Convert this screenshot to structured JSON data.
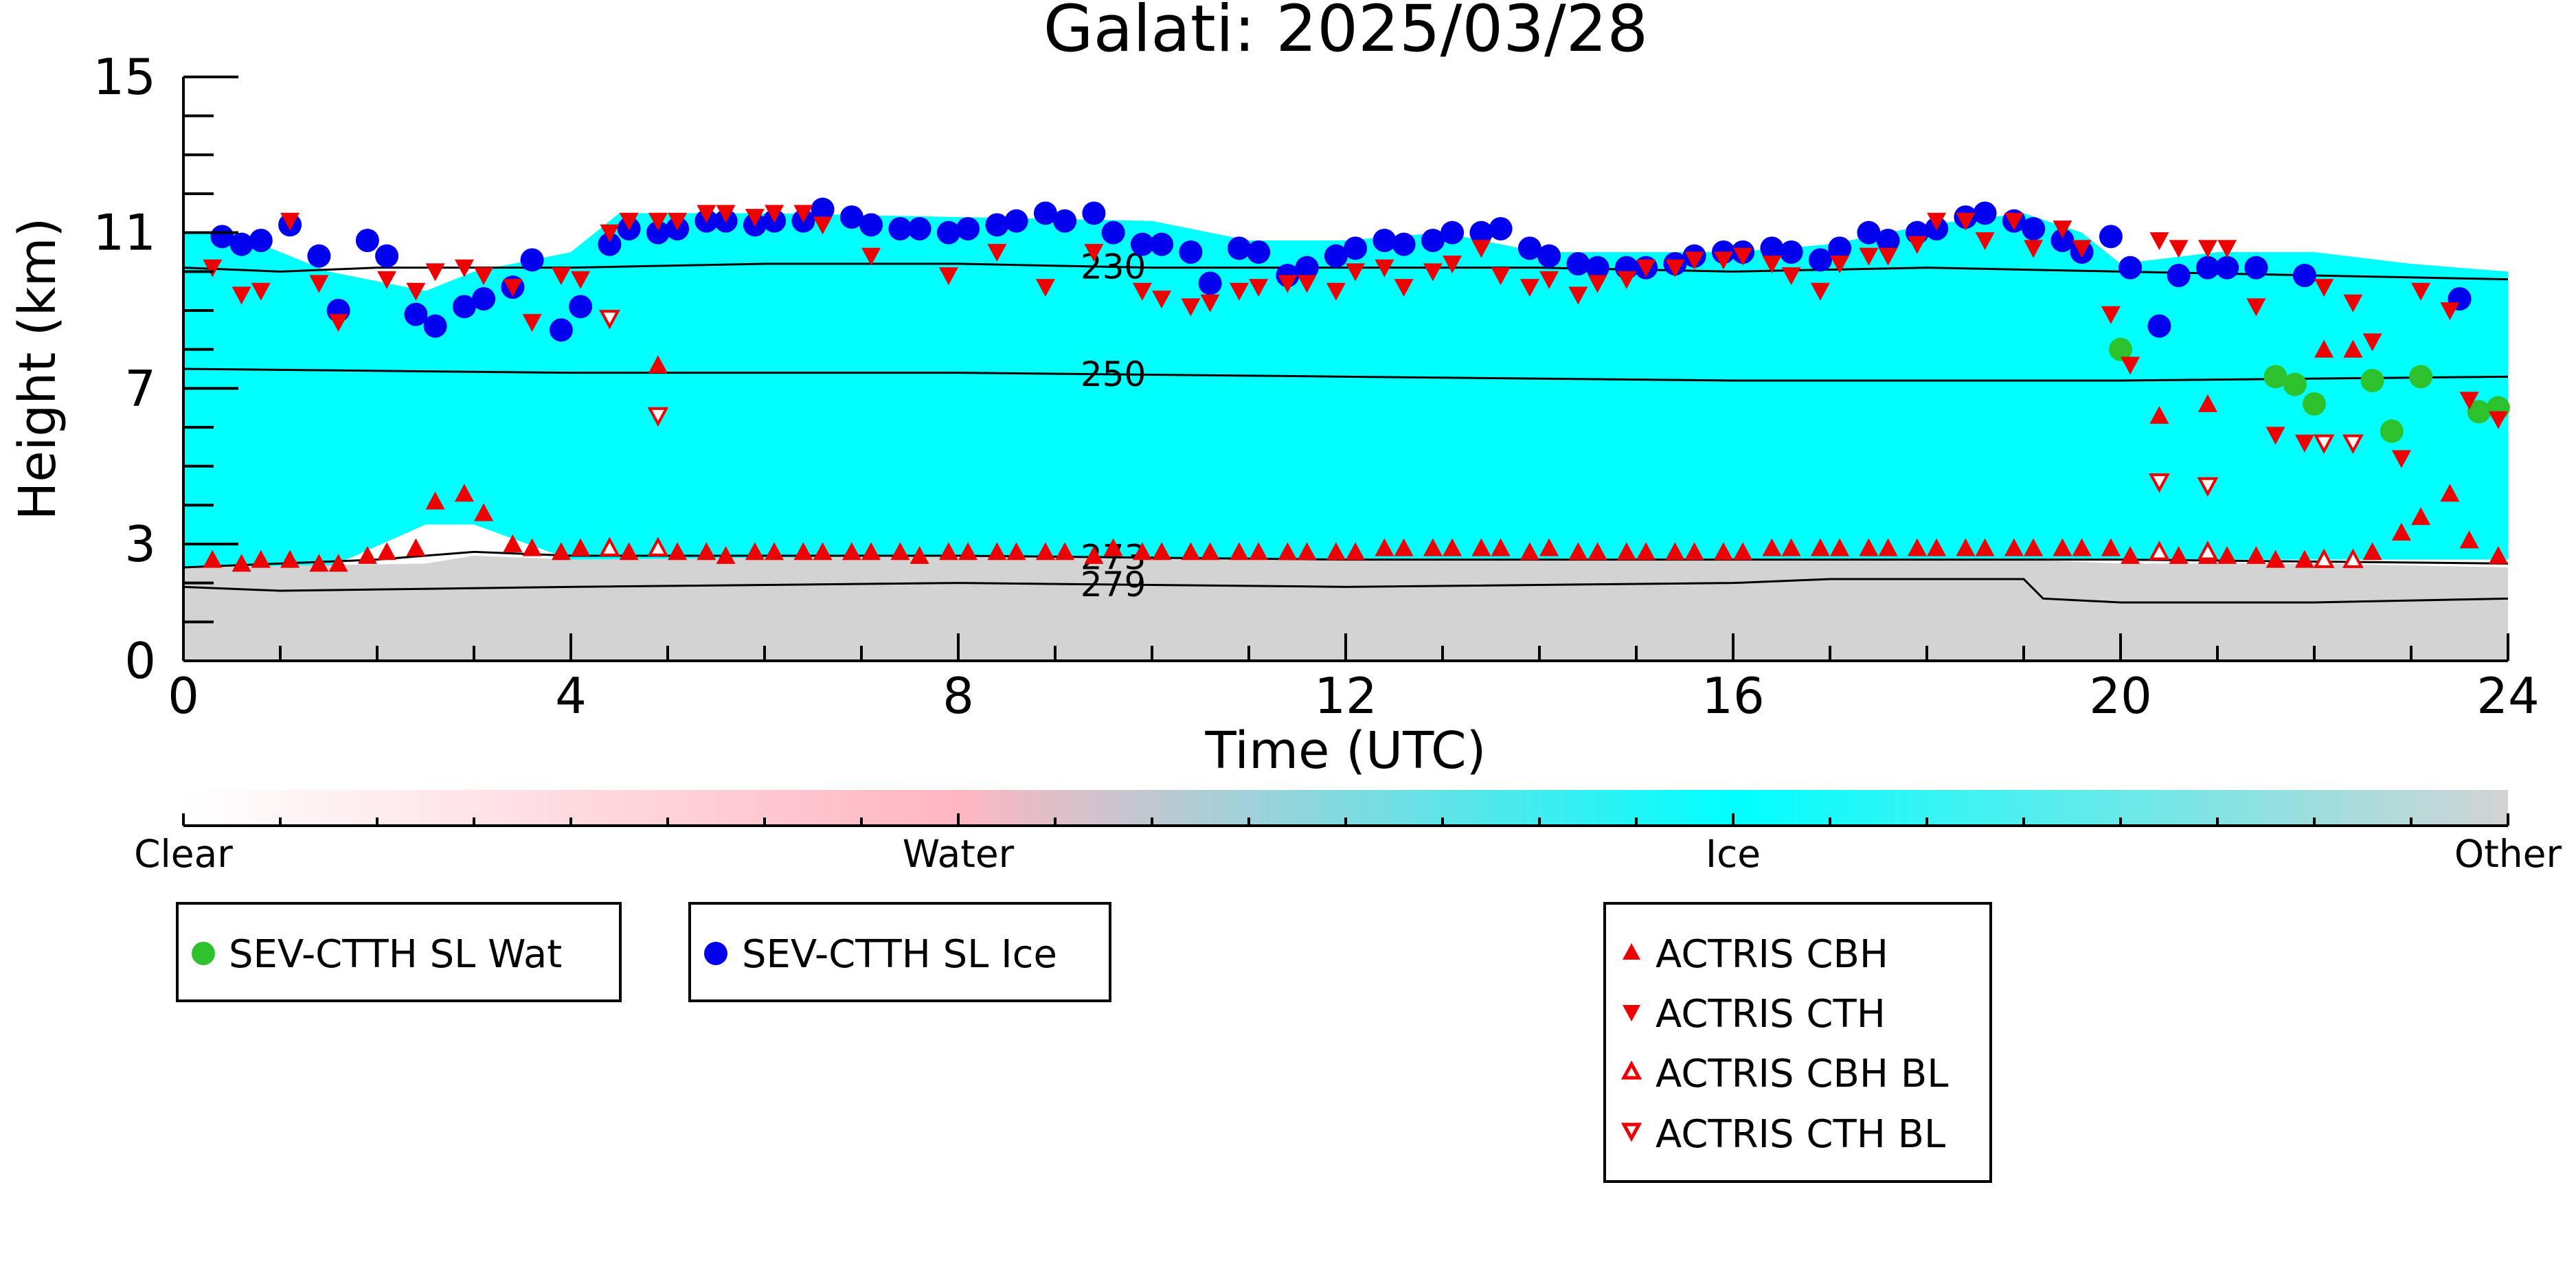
{
  "chart_data": {
    "type": "scatter",
    "title": "Galati: 2025/03/28",
    "xlabel": "Time (UTC)",
    "ylabel": "Height (km)",
    "xlim": [
      0,
      24
    ],
    "ylim": [
      0,
      15
    ],
    "x_ticks": [
      0,
      4,
      8,
      12,
      16,
      20,
      24
    ],
    "y_ticks": [
      0,
      3,
      7,
      11,
      15
    ],
    "background_classes": [
      {
        "name": "cloud-ice",
        "color": "#00FFFF",
        "x": [
          0.0,
          0.5,
          1.5,
          2.5,
          3.0,
          4.0,
          4.5,
          6.0,
          8.0,
          10.0,
          11.0,
          12.0,
          13.0,
          14.0,
          16.0,
          17.0,
          18.0,
          19.0,
          19.6,
          20.0,
          21.0,
          22.0,
          23.0,
          24.0
        ],
        "top": [
          11.0,
          11.0,
          10.0,
          9.5,
          10.0,
          10.5,
          11.5,
          11.5,
          11.4,
          11.3,
          10.8,
          10.8,
          11.0,
          10.5,
          10.5,
          10.7,
          11.2,
          11.5,
          11.0,
          10.2,
          10.5,
          10.5,
          10.2,
          10.0
        ],
        "bottom": [
          2.4,
          2.4,
          2.4,
          3.5,
          3.5,
          2.6,
          2.6,
          2.5,
          2.5,
          2.5,
          2.5,
          2.6,
          2.6,
          2.6,
          2.6,
          2.6,
          2.6,
          2.6,
          2.6,
          2.6,
          2.6,
          2.6,
          2.6,
          2.6
        ]
      },
      {
        "name": "other",
        "color": "#D3D3D3",
        "x": [
          0.0,
          2.5,
          3.0,
          4.0,
          8.0,
          12.0,
          16.0,
          19.0,
          20.0,
          22.0,
          24.0
        ],
        "top": [
          2.4,
          2.5,
          2.7,
          2.6,
          2.7,
          2.6,
          2.6,
          2.6,
          2.5,
          2.5,
          2.4
        ]
      }
    ],
    "contours": [
      {
        "label": "230",
        "x": [
          0,
          1,
          2,
          4,
          6,
          8,
          10,
          12,
          14,
          16,
          18,
          20,
          22,
          24
        ],
        "y": [
          10.1,
          10.0,
          10.1,
          10.1,
          10.2,
          10.2,
          10.1,
          10.1,
          10.1,
          10.0,
          10.1,
          10.0,
          9.9,
          9.8
        ]
      },
      {
        "label": "250",
        "x": [
          0,
          4,
          8,
          12,
          16,
          20,
          24
        ],
        "y": [
          7.5,
          7.4,
          7.4,
          7.3,
          7.2,
          7.2,
          7.3
        ]
      },
      {
        "label": "273",
        "x": [
          0,
          1,
          2,
          3,
          4,
          8,
          12,
          16,
          20,
          24
        ],
        "y": [
          2.4,
          2.5,
          2.6,
          2.8,
          2.7,
          2.7,
          2.6,
          2.6,
          2.6,
          2.5
        ]
      },
      {
        "label": "279",
        "x": [
          0,
          1,
          4,
          8,
          12,
          16,
          17,
          19,
          19.2,
          20,
          22,
          24
        ],
        "y": [
          1.9,
          1.8,
          1.9,
          2.0,
          1.9,
          2.0,
          2.1,
          2.1,
          1.6,
          1.5,
          1.5,
          1.6
        ]
      }
    ],
    "series": [
      {
        "name": "SEV-CTTH SL Wat",
        "marker": "circle",
        "color": "#2DC22D",
        "x": [
          20.0,
          21.6,
          21.8,
          22.0,
          22.6,
          22.8,
          23.1,
          23.7,
          23.9
        ],
        "y": [
          8.0,
          7.3,
          7.1,
          6.6,
          7.2,
          5.9,
          7.3,
          6.4,
          6.5
        ]
      },
      {
        "name": "SEV-CTTH SL Ice",
        "marker": "circle",
        "color": "#0000EE",
        "x": [
          0.4,
          0.6,
          0.8,
          1.1,
          1.4,
          1.6,
          1.9,
          2.1,
          2.4,
          2.6,
          2.9,
          3.1,
          3.4,
          3.6,
          3.9,
          4.1,
          4.4,
          4.6,
          4.9,
          5.1,
          5.4,
          5.6,
          5.9,
          6.1,
          6.4,
          6.6,
          6.9,
          7.1,
          7.4,
          7.6,
          7.9,
          8.1,
          8.4,
          8.6,
          8.9,
          9.1,
          9.4,
          9.6,
          9.9,
          10.1,
          10.4,
          10.6,
          10.9,
          11.1,
          11.4,
          11.6,
          11.9,
          12.1,
          12.4,
          12.6,
          12.9,
          13.1,
          13.4,
          13.6,
          13.9,
          14.1,
          14.4,
          14.6,
          14.9,
          15.1,
          15.4,
          15.6,
          15.9,
          16.1,
          16.4,
          16.6,
          16.9,
          17.1,
          17.4,
          17.6,
          17.9,
          18.1,
          18.4,
          18.6,
          18.9,
          19.1,
          19.4,
          19.6,
          19.9,
          20.1,
          20.4,
          20.6,
          20.9,
          21.1,
          21.4,
          21.9,
          23.5
        ],
        "y": [
          10.9,
          10.7,
          10.8,
          11.2,
          10.4,
          9.0,
          10.8,
          10.4,
          8.9,
          8.6,
          9.1,
          9.3,
          9.6,
          10.3,
          8.5,
          9.1,
          10.7,
          11.1,
          11.0,
          11.1,
          11.3,
          11.3,
          11.2,
          11.3,
          11.3,
          11.6,
          11.4,
          11.2,
          11.1,
          11.1,
          11.0,
          11.1,
          11.2,
          11.3,
          11.5,
          11.3,
          11.5,
          11.0,
          10.7,
          10.7,
          10.5,
          9.7,
          10.6,
          10.5,
          9.9,
          10.1,
          10.4,
          10.6,
          10.8,
          10.7,
          10.8,
          11.0,
          11.0,
          11.1,
          10.6,
          10.4,
          10.2,
          10.1,
          10.1,
          10.1,
          10.2,
          10.4,
          10.5,
          10.5,
          10.6,
          10.5,
          10.3,
          10.6,
          11.0,
          10.8,
          11.0,
          11.1,
          11.4,
          11.5,
          11.3,
          11.1,
          10.8,
          10.5,
          10.9,
          10.1,
          8.6,
          9.9,
          10.1,
          10.1,
          10.1,
          9.9,
          9.3
        ]
      },
      {
        "name": "ACTRIS CBH",
        "marker": "triangle-up",
        "filled": true,
        "color": "#EE0000",
        "x": [
          0.3,
          0.6,
          0.8,
          1.1,
          1.4,
          1.6,
          1.9,
          2.1,
          2.4,
          2.6,
          2.9,
          3.1,
          3.4,
          3.6,
          3.9,
          4.1,
          4.6,
          4.9,
          5.1,
          5.4,
          5.6,
          5.9,
          6.1,
          6.4,
          6.6,
          6.9,
          7.1,
          7.4,
          7.6,
          7.9,
          8.1,
          8.4,
          8.6,
          8.9,
          9.1,
          9.4,
          9.6,
          9.9,
          10.1,
          10.4,
          10.6,
          10.9,
          11.1,
          11.4,
          11.6,
          11.9,
          12.1,
          12.4,
          12.6,
          12.9,
          13.1,
          13.4,
          13.6,
          13.9,
          14.1,
          14.4,
          14.6,
          14.9,
          15.1,
          15.4,
          15.6,
          15.9,
          16.1,
          16.4,
          16.6,
          16.9,
          17.1,
          17.4,
          17.6,
          17.9,
          18.1,
          18.4,
          18.6,
          18.9,
          19.1,
          19.4,
          19.6,
          19.9,
          20.1,
          20.4,
          20.6,
          20.9,
          21.1,
          21.4,
          21.6,
          21.9,
          22.1,
          22.6,
          22.9,
          23.1,
          23.4,
          23.6,
          23.9,
          4.9,
          20.4,
          20.9,
          22.1,
          22.4
        ],
        "y": [
          2.6,
          2.5,
          2.6,
          2.6,
          2.5,
          2.5,
          2.7,
          2.8,
          2.9,
          4.1,
          4.3,
          3.8,
          3.0,
          2.9,
          2.8,
          2.9,
          2.8,
          7.6,
          2.8,
          2.8,
          2.7,
          2.8,
          2.8,
          2.8,
          2.8,
          2.8,
          2.8,
          2.8,
          2.7,
          2.8,
          2.8,
          2.8,
          2.8,
          2.8,
          2.8,
          2.7,
          2.9,
          2.8,
          2.8,
          2.8,
          2.8,
          2.8,
          2.8,
          2.8,
          2.8,
          2.8,
          2.8,
          2.9,
          2.9,
          2.9,
          2.9,
          2.9,
          2.9,
          2.8,
          2.9,
          2.8,
          2.8,
          2.8,
          2.8,
          2.8,
          2.8,
          2.8,
          2.8,
          2.9,
          2.9,
          2.9,
          2.9,
          2.9,
          2.9,
          2.9,
          2.9,
          2.9,
          2.9,
          2.9,
          2.9,
          2.9,
          2.9,
          2.9,
          2.7,
          2.8,
          2.7,
          2.7,
          2.7,
          2.7,
          2.6,
          2.6,
          2.6,
          2.8,
          3.3,
          3.7,
          4.3,
          3.1,
          2.7,
          7.6,
          6.3,
          6.6,
          8.0,
          8.0
        ]
      },
      {
        "name": "ACTRIS CTH",
        "marker": "triangle-down",
        "filled": true,
        "color": "#EE0000",
        "x": [
          0.3,
          0.6,
          0.8,
          1.1,
          1.4,
          1.6,
          2.1,
          2.4,
          2.6,
          2.9,
          3.1,
          3.4,
          3.6,
          3.9,
          4.1,
          4.4,
          4.6,
          4.9,
          5.1,
          5.4,
          5.6,
          5.9,
          6.1,
          6.4,
          6.6,
          7.1,
          7.9,
          8.4,
          8.9,
          9.4,
          9.9,
          10.1,
          10.4,
          10.6,
          10.9,
          11.1,
          11.4,
          11.6,
          11.9,
          12.1,
          12.4,
          12.6,
          12.9,
          13.1,
          13.4,
          13.6,
          13.9,
          14.1,
          14.4,
          14.6,
          14.9,
          15.1,
          15.4,
          15.6,
          15.9,
          16.1,
          16.4,
          16.6,
          16.9,
          17.1,
          17.4,
          17.6,
          17.9,
          18.1,
          18.4,
          18.6,
          18.9,
          19.1,
          19.4,
          19.6,
          19.9,
          20.1,
          20.4,
          20.6,
          20.9,
          21.1,
          21.4,
          21.6,
          21.9,
          22.1,
          22.4,
          22.6,
          22.9,
          23.1,
          23.4,
          23.6,
          23.9
        ],
        "y": [
          10.1,
          9.4,
          9.5,
          11.3,
          9.7,
          8.7,
          9.8,
          9.5,
          10.0,
          10.1,
          9.9,
          9.6,
          8.7,
          9.9,
          9.8,
          11.0,
          11.3,
          11.3,
          11.3,
          11.5,
          11.5,
          11.4,
          11.5,
          11.5,
          11.2,
          10.4,
          9.9,
          10.5,
          9.6,
          10.5,
          9.5,
          9.3,
          9.1,
          9.2,
          9.5,
          9.6,
          9.7,
          9.7,
          9.5,
          10.0,
          10.1,
          9.6,
          10.0,
          10.2,
          10.6,
          9.9,
          9.6,
          9.8,
          9.4,
          9.7,
          9.8,
          10.1,
          10.1,
          10.3,
          10.3,
          10.4,
          10.2,
          9.9,
          9.5,
          10.2,
          10.4,
          10.4,
          10.7,
          11.3,
          11.3,
          10.8,
          11.3,
          10.6,
          11.1,
          10.6,
          8.9,
          7.6,
          10.8,
          10.6,
          10.6,
          10.6,
          9.1,
          5.8,
          5.6,
          9.6,
          9.2,
          8.2,
          5.2,
          9.5,
          9.0,
          6.7,
          6.2
        ]
      },
      {
        "name": "ACTRIS CBH BL",
        "marker": "triangle-up",
        "filled": false,
        "color": "#EE0000",
        "x": [
          4.4,
          4.9,
          20.4,
          20.9,
          22.1,
          22.4
        ],
        "y": [
          2.9,
          2.9,
          2.8,
          2.8,
          2.6,
          2.6
        ]
      },
      {
        "name": "ACTRIS CTH BL",
        "marker": "triangle-down",
        "filled": false,
        "color": "#EE0000",
        "x": [
          4.4,
          4.9,
          20.4,
          20.9,
          22.1,
          22.4
        ],
        "y": [
          8.8,
          6.3,
          4.6,
          4.5,
          5.6,
          5.6
        ]
      }
    ],
    "colorbar": {
      "labels": [
        "Clear",
        "Water",
        "Ice",
        "Other"
      ],
      "colors": [
        "#FFFFFF",
        "#FFB6C1",
        "#00FFFF",
        "#D3D3D3"
      ]
    },
    "legends": [
      [
        "SEV-CTTH SL Wat"
      ],
      [
        "SEV-CTTH SL Ice"
      ],
      [
        "ACTRIS CBH",
        "ACTRIS CTH",
        "ACTRIS CBH BL",
        "ACTRIS CTH BL"
      ]
    ]
  }
}
